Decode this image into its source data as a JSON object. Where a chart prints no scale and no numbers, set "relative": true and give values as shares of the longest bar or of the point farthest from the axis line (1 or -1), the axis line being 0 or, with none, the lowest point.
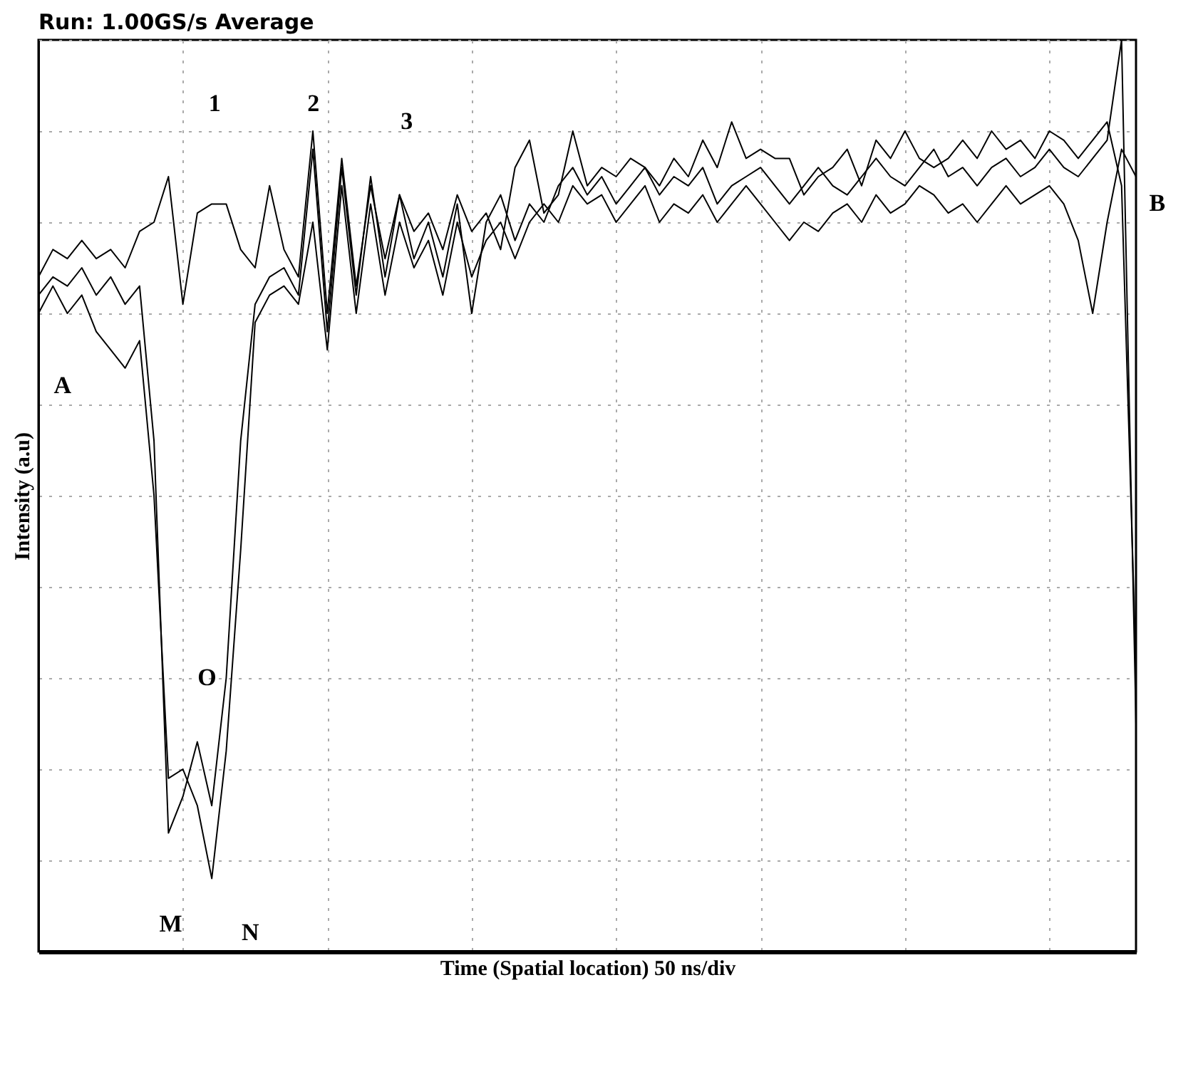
{
  "chart_data": {
    "type": "line",
    "title": "Run: 1.00GS/s Average",
    "xlabel": "Time (Spatial location) 50 ns/div",
    "ylabel": "Intensity (a.u)",
    "relative": true,
    "grid": true,
    "line_style": "solid",
    "categories": [
      null,
      null,
      null,
      null,
      null,
      null,
      null,
      null,
      null,
      null,
      null,
      null,
      null,
      null,
      null,
      null,
      null,
      null,
      null,
      null,
      null,
      null,
      null,
      null,
      null,
      null,
      null,
      null,
      null,
      null,
      null,
      null,
      null,
      null,
      null,
      null,
      null,
      null,
      null,
      null,
      null,
      null,
      null,
      null,
      null,
      null,
      null,
      null,
      null,
      null,
      null,
      null,
      null,
      null,
      null,
      null,
      null,
      null,
      null,
      null,
      null,
      null,
      null,
      null,
      null,
      null,
      null,
      null,
      null,
      null,
      null,
      null,
      null,
      null,
      null,
      null,
      null
    ],
    "series": [
      {
        "color": "#000000",
        "values": [
          0.74,
          0.77,
          0.76,
          0.78,
          0.76,
          0.77,
          0.75,
          0.79,
          0.8,
          0.85,
          0.71,
          0.81,
          0.82,
          0.82,
          0.77,
          0.75,
          0.84,
          0.77,
          0.74,
          0.9,
          0.7,
          0.87,
          0.73,
          0.84,
          0.76,
          0.83,
          0.79,
          0.81,
          0.77,
          0.83,
          0.79,
          0.81,
          0.77,
          0.86,
          0.89,
          0.81,
          0.83,
          0.9,
          0.84,
          0.86,
          0.85,
          0.87,
          0.86,
          0.84,
          0.87,
          0.85,
          0.89,
          0.86,
          0.91,
          0.87,
          0.88,
          0.87,
          0.87,
          0.83,
          0.85,
          0.86,
          0.88,
          0.84,
          0.89,
          0.87,
          0.9,
          0.87,
          0.86,
          0.87,
          0.89,
          0.87,
          0.9,
          0.88,
          0.89,
          0.87,
          0.9,
          0.89,
          0.87,
          0.89,
          0.91,
          0.84,
          0.31
        ]
      },
      {
        "color": "#000000",
        "values": [
          0.72,
          0.74,
          0.73,
          0.75,
          0.72,
          0.74,
          0.71,
          0.73,
          0.56,
          0.13,
          0.17,
          0.23,
          0.16,
          0.3,
          0.56,
          0.71,
          0.74,
          0.75,
          0.72,
          0.88,
          0.68,
          0.86,
          0.72,
          0.85,
          0.74,
          0.83,
          0.76,
          0.8,
          0.74,
          0.82,
          0.7,
          0.8,
          0.83,
          0.78,
          0.82,
          0.8,
          0.84,
          0.86,
          0.83,
          0.85,
          0.82,
          0.84,
          0.86,
          0.83,
          0.85,
          0.84,
          0.86,
          0.82,
          0.84,
          0.85,
          0.86,
          0.84,
          0.82,
          0.84,
          0.86,
          0.84,
          0.83,
          0.85,
          0.87,
          0.85,
          0.84,
          0.86,
          0.88,
          0.85,
          0.86,
          0.84,
          0.86,
          0.87,
          0.85,
          0.86,
          0.88,
          0.86,
          0.85,
          0.87,
          0.89,
          1.0,
          0.25
        ]
      },
      {
        "color": "#000000",
        "values": [
          0.7,
          0.73,
          0.7,
          0.72,
          0.68,
          0.66,
          0.64,
          0.67,
          0.5,
          0.19,
          0.2,
          0.16,
          0.08,
          0.22,
          0.44,
          0.69,
          0.72,
          0.73,
          0.71,
          0.8,
          0.66,
          0.84,
          0.7,
          0.82,
          0.72,
          0.8,
          0.75,
          0.78,
          0.72,
          0.8,
          0.74,
          0.78,
          0.8,
          0.76,
          0.8,
          0.82,
          0.8,
          0.84,
          0.82,
          0.83,
          0.8,
          0.82,
          0.84,
          0.8,
          0.82,
          0.81,
          0.83,
          0.8,
          0.82,
          0.84,
          0.82,
          0.8,
          0.78,
          0.8,
          0.79,
          0.81,
          0.82,
          0.8,
          0.83,
          0.81,
          0.82,
          0.84,
          0.83,
          0.81,
          0.82,
          0.8,
          0.82,
          0.84,
          0.82,
          0.83,
          0.84,
          0.82,
          0.78,
          0.7,
          0.8,
          0.88,
          0.85
        ]
      }
    ],
    "annotations": [
      "1",
      "2",
      "3",
      "A",
      "B",
      "M",
      "N",
      "O"
    ]
  }
}
